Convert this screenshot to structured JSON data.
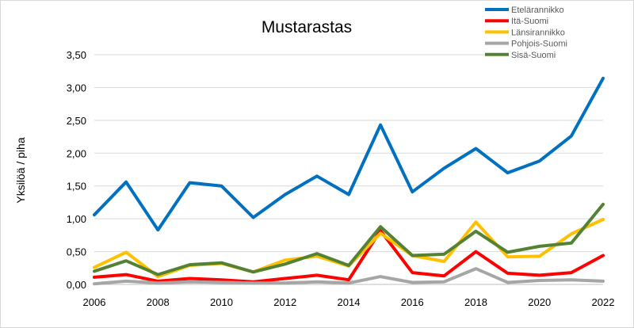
{
  "chart_data": {
    "type": "line",
    "title": "Mustarastas",
    "xlabel": "",
    "ylabel": "Yksilöä / piha",
    "x": [
      2006,
      2007,
      2008,
      2009,
      2010,
      2011,
      2012,
      2013,
      2014,
      2015,
      2016,
      2017,
      2018,
      2019,
      2020,
      2021,
      2022
    ],
    "x_tick_labels": [
      "2006",
      "2008",
      "2010",
      "2012",
      "2014",
      "2016",
      "2018",
      "2020",
      "2022"
    ],
    "xlim": [
      2006,
      2022
    ],
    "ylim": [
      0,
      3.5
    ],
    "y_ticks": [
      0,
      0.5,
      1.0,
      1.5,
      2.0,
      2.5,
      3.0,
      3.5
    ],
    "y_tick_labels": [
      "0,00",
      "0,50",
      "1,00",
      "1,50",
      "2,00",
      "2,50",
      "3,00",
      "3,50"
    ],
    "grid": true,
    "legend_position": "top-right",
    "series": [
      {
        "name": "Etelärannikko",
        "color": "#0070C0",
        "values": [
          1.06,
          1.56,
          0.83,
          1.55,
          1.5,
          1.02,
          1.37,
          1.65,
          1.37,
          2.43,
          1.41,
          1.77,
          2.07,
          1.7,
          1.88,
          2.26,
          3.14
        ]
      },
      {
        "name": "Itä-Suomi",
        "color": "#FF0000",
        "values": [
          0.11,
          0.15,
          0.05,
          0.09,
          0.07,
          0.04,
          0.09,
          0.14,
          0.07,
          0.82,
          0.18,
          0.13,
          0.5,
          0.17,
          0.14,
          0.18,
          0.44
        ]
      },
      {
        "name": "Länsirannikko",
        "color": "#FFC000",
        "values": [
          0.26,
          0.49,
          0.12,
          0.29,
          0.32,
          0.19,
          0.37,
          0.43,
          0.28,
          0.78,
          0.44,
          0.35,
          0.95,
          0.42,
          0.43,
          0.77,
          0.99
        ]
      },
      {
        "name": "Pohjois-Suomi",
        "color": "#A6A6A6",
        "values": [
          0.01,
          0.05,
          0.02,
          0.04,
          0.03,
          0.02,
          0.02,
          0.04,
          0.02,
          0.12,
          0.03,
          0.04,
          0.24,
          0.03,
          0.06,
          0.07,
          0.05
        ]
      },
      {
        "name": "Sisä-Suomi",
        "color": "#548235",
        "values": [
          0.2,
          0.36,
          0.15,
          0.3,
          0.33,
          0.19,
          0.31,
          0.47,
          0.29,
          0.88,
          0.44,
          0.46,
          0.81,
          0.49,
          0.58,
          0.63,
          1.22
        ]
      }
    ]
  }
}
